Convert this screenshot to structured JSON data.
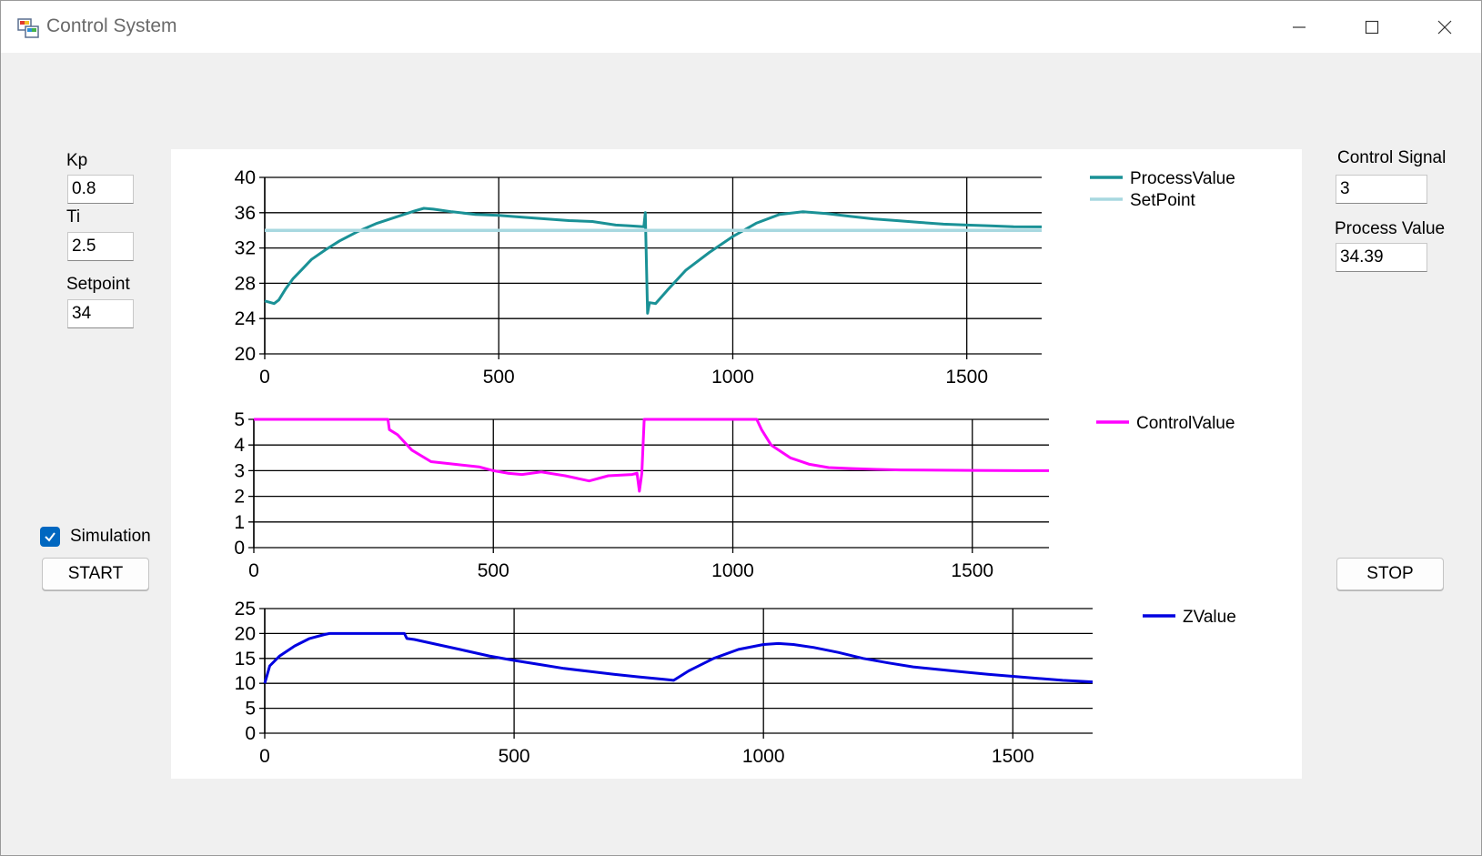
{
  "window": {
    "title": "Control System"
  },
  "params": {
    "kp_label": "Kp",
    "kp_value": "0.8",
    "ti_label": "Ti",
    "ti_value": "2.5",
    "setpoint_label": "Setpoint",
    "setpoint_value": "34"
  },
  "simulation": {
    "label": "Simulation",
    "checked": true
  },
  "buttons": {
    "start": "START",
    "stop": "STOP"
  },
  "readouts": {
    "control_signal_label": "Control Signal",
    "control_signal_value": "3",
    "process_value_label": "Process Value",
    "process_value_value": "34.39"
  },
  "colors": {
    "process_value": "#1a9196",
    "setpoint": "#a8d8e0",
    "control_value": "#ff00ff",
    "z_value": "#0000e0"
  },
  "chart_data": [
    {
      "type": "line",
      "title": "",
      "xlabel": "",
      "ylabel": "",
      "xlim": [
        0,
        1660
      ],
      "ylim": [
        20,
        40
      ],
      "x_ticks": [
        "0",
        "500",
        "1000",
        "1500"
      ],
      "y_ticks": [
        "20",
        "24",
        "28",
        "32",
        "36",
        "40"
      ],
      "legend_position": "top-right",
      "series": [
        {
          "name": "ProcessValue",
          "x": [
            0,
            20,
            30,
            45,
            60,
            80,
            100,
            130,
            160,
            200,
            240,
            280,
            320,
            340,
            360,
            400,
            450,
            500,
            550,
            600,
            650,
            700,
            750,
            780,
            810,
            813,
            818,
            822,
            835,
            860,
            900,
            950,
            1000,
            1050,
            1100,
            1150,
            1200,
            1250,
            1300,
            1350,
            1400,
            1450,
            1500,
            1550,
            1600,
            1660
          ],
          "y": [
            26,
            25.7,
            26.1,
            27.4,
            28.5,
            29.6,
            30.7,
            31.8,
            32.8,
            33.9,
            34.8,
            35.5,
            36.2,
            36.5,
            36.4,
            36.1,
            35.8,
            35.7,
            35.5,
            35.3,
            35.1,
            35,
            34.6,
            34.5,
            34.4,
            36,
            24.6,
            25.8,
            25.7,
            27.2,
            29.5,
            31.5,
            33.3,
            34.8,
            35.8,
            36.1,
            35.9,
            35.6,
            35.3,
            35.1,
            34.9,
            34.7,
            34.6,
            34.5,
            34.4,
            34.39
          ]
        },
        {
          "name": "SetPoint",
          "x": [
            0,
            1660
          ],
          "y": [
            34,
            34
          ]
        }
      ]
    },
    {
      "type": "line",
      "title": "",
      "xlabel": "",
      "ylabel": "",
      "xlim": [
        0,
        1660
      ],
      "ylim": [
        0,
        5
      ],
      "x_ticks": [
        "0",
        "500",
        "1000",
        "1500"
      ],
      "y_ticks": [
        "0",
        "1",
        "2",
        "3",
        "4",
        "5"
      ],
      "legend_position": "top-right",
      "series": [
        {
          "name": "ControlValue",
          "x": [
            0,
            280,
            283,
            300,
            330,
            370,
            420,
            470,
            500,
            530,
            560,
            600,
            650,
            700,
            740,
            790,
            800,
            805,
            810,
            815,
            820,
            1000,
            1050,
            1060,
            1080,
            1120,
            1160,
            1200,
            1250,
            1300,
            1350,
            1400,
            1500,
            1600,
            1660
          ],
          "y": [
            5,
            5,
            4.6,
            4.4,
            3.8,
            3.35,
            3.25,
            3.15,
            3,
            2.9,
            2.85,
            2.95,
            2.8,
            2.6,
            2.8,
            2.85,
            2.9,
            2.2,
            2.9,
            5,
            5,
            5,
            5,
            4.6,
            4,
            3.5,
            3.25,
            3.12,
            3.08,
            3.05,
            3.03,
            3.02,
            3.01,
            3,
            3
          ]
        }
      ]
    },
    {
      "type": "line",
      "title": "",
      "xlabel": "",
      "ylabel": "",
      "xlim": [
        0,
        1660
      ],
      "ylim": [
        0,
        25
      ],
      "x_ticks": [
        "0",
        "500",
        "1000",
        "1500"
      ],
      "y_ticks": [
        "0",
        "5",
        "10",
        "15",
        "20",
        "25"
      ],
      "legend_position": "top-right",
      "series": [
        {
          "name": "ZValue",
          "x": [
            0,
            10,
            30,
            60,
            90,
            120,
            130,
            150,
            200,
            250,
            280,
            285,
            300,
            350,
            400,
            450,
            500,
            550,
            600,
            650,
            700,
            750,
            800,
            820,
            850,
            900,
            950,
            1000,
            1030,
            1060,
            1100,
            1150,
            1200,
            1250,
            1300,
            1350,
            1400,
            1450,
            1500,
            1550,
            1600,
            1660
          ],
          "y": [
            10,
            13.5,
            15.5,
            17.5,
            19,
            19.8,
            20,
            20,
            20,
            20,
            20,
            19,
            18.8,
            17.7,
            16.6,
            15.5,
            14.6,
            13.8,
            13,
            12.4,
            11.8,
            11.3,
            10.8,
            10.6,
            12.5,
            15,
            16.8,
            17.8,
            18,
            17.8,
            17.2,
            16.2,
            15,
            14.1,
            13.3,
            12.8,
            12.3,
            11.8,
            11.4,
            11,
            10.6,
            10.3
          ]
        }
      ]
    }
  ]
}
